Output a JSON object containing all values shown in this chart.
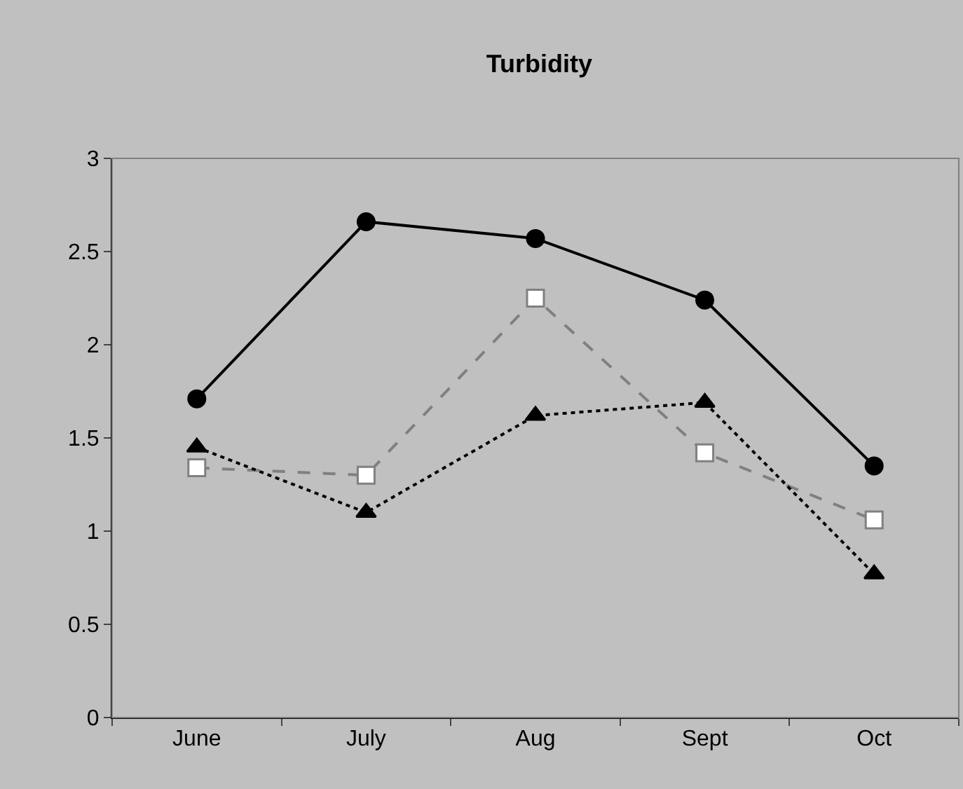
{
  "chart_data": {
    "type": "line",
    "title": "Turbidity",
    "categories": [
      "June",
      "July",
      "Aug",
      "Sept",
      "Oct"
    ],
    "series": [
      {
        "color": "#000000",
        "marker": "circle",
        "line_style": "solid",
        "values": [
          1.71,
          2.66,
          2.57,
          2.24,
          1.35
        ]
      },
      {
        "color": "#808080",
        "marker": "square",
        "line_style": "dashed",
        "values": [
          1.34,
          1.3,
          2.25,
          1.42,
          1.06
        ]
      },
      {
        "color": "#000000",
        "marker": "triangle",
        "line_style": "dotted",
        "values": [
          1.45,
          1.1,
          1.62,
          1.69,
          0.77
        ]
      }
    ],
    "ylim": [
      0,
      3
    ],
    "yticks": [
      0,
      0.5,
      1,
      1.5,
      2,
      2.5,
      3
    ],
    "grid": false,
    "legend": false
  }
}
